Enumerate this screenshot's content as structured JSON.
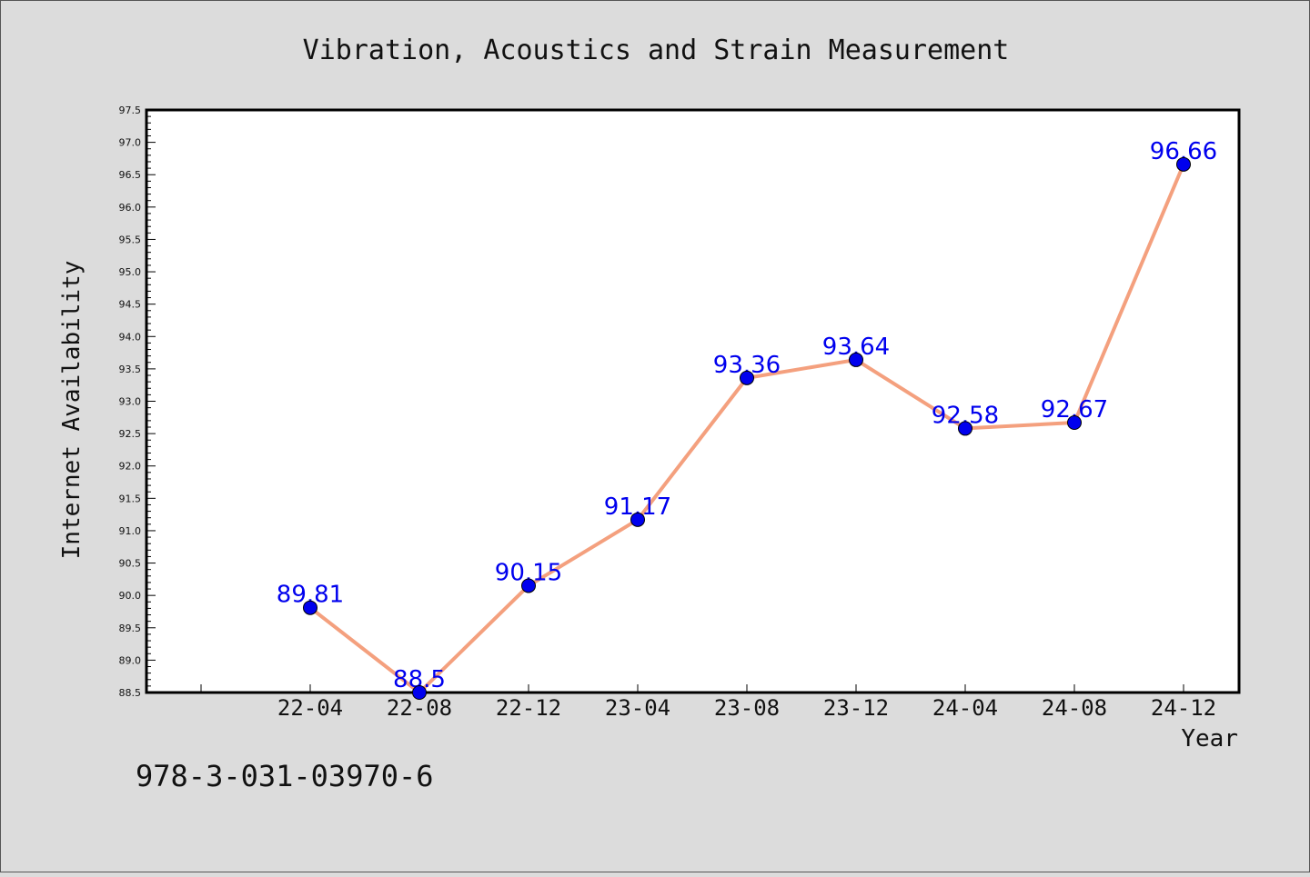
{
  "colors": {
    "background": "#dcdcdc",
    "plot_background": "#ffffff",
    "line": "#f4a07e",
    "marker": "#0000ee",
    "data_label": "#0000ee",
    "axis": "#000000"
  },
  "footer_text": "978-3-031-03970-6",
  "chart_data": {
    "type": "line",
    "title": "Vibration, Acoustics and Strain Measurement",
    "xlabel": "Year",
    "ylabel": "Internet Availability",
    "categories": [
      "22-04",
      "22-08",
      "22-12",
      "23-04",
      "23-08",
      "23-12",
      "24-04",
      "24-08",
      "24-12"
    ],
    "series": [
      {
        "values": [
          89.81,
          88.5,
          90.15,
          91.17,
          93.36,
          93.64,
          92.58,
          92.67,
          96.66
        ]
      }
    ],
    "data_labels": [
      "89.81",
      "88.5",
      "90.15",
      "91.17",
      "93.36",
      "93.64",
      "92.58",
      "92.67",
      "96.66"
    ],
    "ylim": [
      88.5,
      97.5
    ],
    "yticks": [
      "88.5",
      "89.0",
      "89.5",
      "90.0",
      "90.5",
      "91.0",
      "91.5",
      "92.0",
      "92.5",
      "93.0",
      "93.5",
      "94.0",
      "94.5",
      "95.0",
      "95.5",
      "96.0",
      "96.5",
      "97.0",
      "97.5"
    ],
    "grid": false,
    "legend": "none"
  }
}
